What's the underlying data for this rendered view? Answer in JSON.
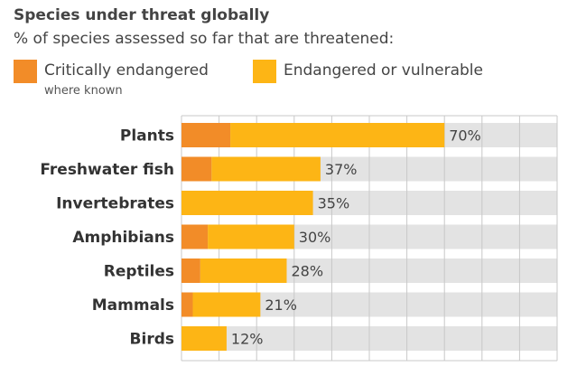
{
  "title": "Species under threat globally",
  "subtitle": "% of species assessed so far that are threatened:",
  "colors": {
    "critical": "#F28C28",
    "endangered": "#FDB515",
    "track": "#E3E3E3",
    "grid": "#C8C8C8",
    "label": "#333333"
  },
  "chart_data": {
    "type": "bar",
    "orientation": "horizontal",
    "stacked": true,
    "title": "Species under threat globally",
    "subtitle": "% of species assessed so far that are threatened:",
    "categories": [
      "Plants",
      "Freshwater fish",
      "Invertebrates",
      "Amphibians",
      "Reptiles",
      "Mammals",
      "Birds"
    ],
    "total_labels": [
      "70%",
      "37%",
      "35%",
      "30%",
      "28%",
      "21%",
      "12%"
    ],
    "totals": [
      70,
      37,
      35,
      30,
      28,
      21,
      12
    ],
    "series": [
      {
        "name": "Critically endangered",
        "note": "where known",
        "color": "#F28C28",
        "values": [
          13,
          8,
          0,
          7,
          5,
          3,
          0
        ]
      },
      {
        "name": "Endangered or vulnerable",
        "color": "#FDB515",
        "values": [
          57,
          29,
          35,
          23,
          23,
          18,
          12
        ]
      }
    ],
    "xlim": [
      0,
      100
    ],
    "grid": true,
    "legend": "top-left"
  }
}
